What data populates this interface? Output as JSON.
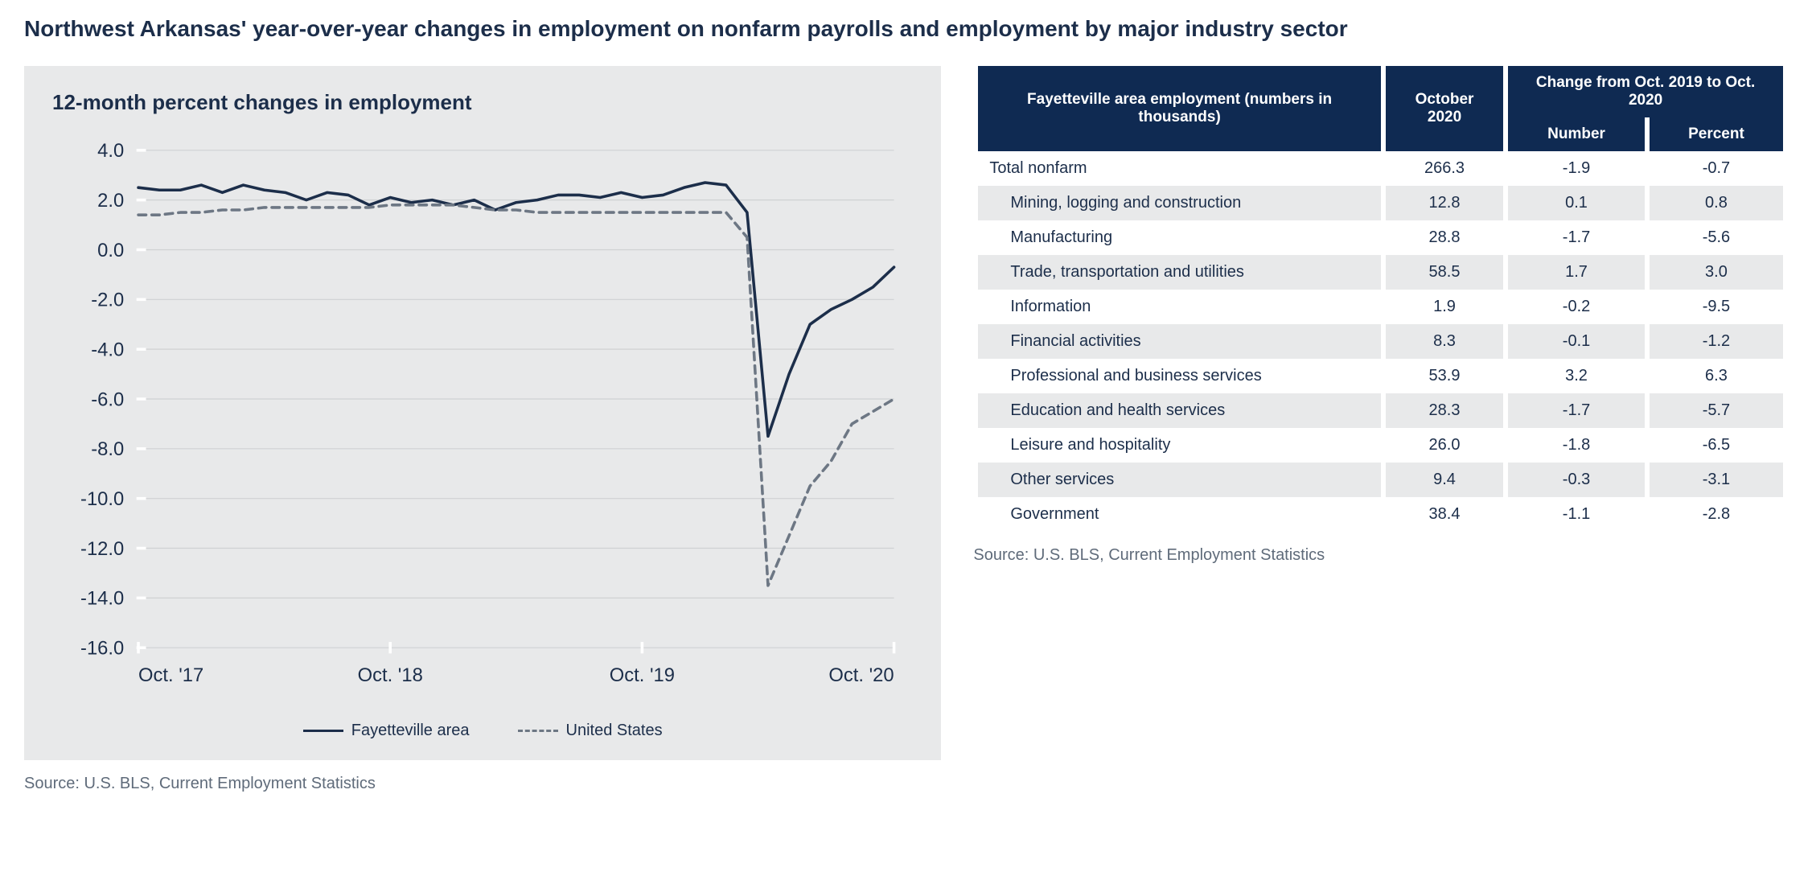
{
  "main_title": "Northwest Arkansas' year-over-year changes in employment on nonfarm payrolls and employment by major industry sector",
  "chart": {
    "type": "line",
    "title": "12-month percent changes in employment",
    "background_color": "#e8e9ea",
    "plot_bg": "#e8e9ea",
    "grid_color": "#cfd1d3",
    "axis_tick_color": "#ffffff",
    "title_color": "#1c2e4a",
    "title_fontsize": 26,
    "label_fontsize": 20,
    "label_color": "#1c2e4a",
    "ylim": [
      -16,
      4
    ],
    "ytick_step": 2,
    "yticks": [
      "4.0",
      "2.0",
      "0.0",
      "-2.0",
      "-4.0",
      "-6.0",
      "-8.0",
      "-10.0",
      "-12.0",
      "-14.0",
      "-16.0"
    ],
    "x_count": 37,
    "xtick_positions": [
      0,
      12,
      24,
      36
    ],
    "xtick_labels": [
      "Oct. '17",
      "Oct. '18",
      "Oct. '19",
      "Oct. '20"
    ],
    "line_width": 3,
    "series": [
      {
        "name": "Fayetteville area",
        "color": "#1c2e4a",
        "dash": "none",
        "values": [
          2.5,
          2.4,
          2.4,
          2.6,
          2.3,
          2.6,
          2.4,
          2.3,
          2.0,
          2.3,
          2.2,
          1.8,
          2.1,
          1.9,
          2.0,
          1.8,
          2.0,
          1.6,
          1.9,
          2.0,
          2.2,
          2.2,
          2.1,
          2.3,
          2.1,
          2.2,
          2.5,
          2.7,
          2.6,
          1.5,
          -7.5,
          -5.0,
          -3.0,
          -2.4,
          -2.0,
          -1.5,
          -0.7
        ]
      },
      {
        "name": "United States",
        "color": "#6d7784",
        "dash": "8,6",
        "values": [
          1.4,
          1.4,
          1.5,
          1.5,
          1.6,
          1.6,
          1.7,
          1.7,
          1.7,
          1.7,
          1.7,
          1.7,
          1.8,
          1.8,
          1.8,
          1.8,
          1.7,
          1.6,
          1.6,
          1.5,
          1.5,
          1.5,
          1.5,
          1.5,
          1.5,
          1.5,
          1.5,
          1.5,
          1.5,
          0.5,
          -13.5,
          -11.5,
          -9.5,
          -8.5,
          -7.0,
          -6.5,
          -6.0
        ]
      }
    ],
    "legend": {
      "items": [
        {
          "label": "Fayetteville area",
          "color": "#1c2e4a",
          "dash": "solid"
        },
        {
          "label": "United States",
          "color": "#6d7784",
          "dash": "dashed"
        }
      ]
    },
    "source": "Source: U.S. BLS, Current Employment Statistics"
  },
  "table": {
    "header_bg": "#0f2a52",
    "header_color": "#ffffff",
    "row_alt_bg": "#e8e9ea",
    "row_bg": "#ffffff",
    "text_color": "#1c2e4a",
    "fontsize": 20,
    "columns": {
      "main": "Fayetteville area employment (numbers in thousands)",
      "col1": "October 2020",
      "change_span": "Change from Oct. 2019 to Oct. 2020",
      "sub_number": "Number",
      "sub_percent": "Percent"
    },
    "rows": [
      {
        "label": "Total nonfarm",
        "indent": false,
        "oct2020": "266.3",
        "number": "-1.9",
        "percent": "-0.7"
      },
      {
        "label": "Mining, logging and construction",
        "indent": true,
        "oct2020": "12.8",
        "number": "0.1",
        "percent": "0.8"
      },
      {
        "label": "Manufacturing",
        "indent": true,
        "oct2020": "28.8",
        "number": "-1.7",
        "percent": "-5.6"
      },
      {
        "label": "Trade, transportation and utilities",
        "indent": true,
        "oct2020": "58.5",
        "number": "1.7",
        "percent": "3.0"
      },
      {
        "label": "Information",
        "indent": true,
        "oct2020": "1.9",
        "number": "-0.2",
        "percent": "-9.5"
      },
      {
        "label": "Financial activities",
        "indent": true,
        "oct2020": "8.3",
        "number": "-0.1",
        "percent": "-1.2"
      },
      {
        "label": "Professional and business services",
        "indent": true,
        "oct2020": "53.9",
        "number": "3.2",
        "percent": "6.3"
      },
      {
        "label": "Education and health services",
        "indent": true,
        "oct2020": "28.3",
        "number": "-1.7",
        "percent": "-5.7"
      },
      {
        "label": "Leisure and hospitality",
        "indent": true,
        "oct2020": "26.0",
        "number": "-1.8",
        "percent": "-6.5"
      },
      {
        "label": "Other services",
        "indent": true,
        "oct2020": "9.4",
        "number": "-0.3",
        "percent": "-3.1"
      },
      {
        "label": "Government",
        "indent": true,
        "oct2020": "38.4",
        "number": "-1.1",
        "percent": "-2.8"
      }
    ],
    "source": "Source: U.S. BLS, Current Employment Statistics"
  }
}
